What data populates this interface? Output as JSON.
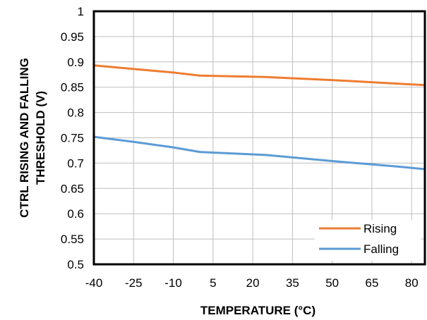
{
  "chart_data": {
    "type": "line",
    "title": "",
    "xlabel": "TEMPERATURE (°C)",
    "ylabel_line1": "CTRL RISING AND FALLING",
    "ylabel_line2": "THRESHOLD (V)",
    "xlim": [
      -40,
      85
    ],
    "ylim": [
      0.5,
      1.0
    ],
    "x_ticks": [
      -40,
      -25,
      -10,
      5,
      20,
      35,
      50,
      65,
      80
    ],
    "y_ticks": [
      0.5,
      0.55,
      0.6,
      0.65,
      0.7,
      0.75,
      0.8,
      0.85,
      0.9,
      0.95,
      1.0
    ],
    "y_tick_labels": [
      "0.5",
      "0.55",
      "0.6",
      "0.65",
      "0.7",
      "0.75",
      "0.8",
      "0.85",
      "0.9",
      "0.95",
      "1"
    ],
    "grid": true,
    "legend_position": "bottom-right",
    "series": [
      {
        "name": "Rising",
        "color": "#ED7D31",
        "points": [
          [
            -40,
            0.893
          ],
          [
            -25,
            0.886
          ],
          [
            -10,
            0.879
          ],
          [
            0,
            0.873
          ],
          [
            25,
            0.87
          ],
          [
            50,
            0.864
          ],
          [
            75,
            0.857
          ],
          [
            85,
            0.854
          ]
        ]
      },
      {
        "name": "Falling",
        "color": "#5B9BD5",
        "points": [
          [
            -40,
            0.752
          ],
          [
            -25,
            0.742
          ],
          [
            -10,
            0.731
          ],
          [
            0,
            0.722
          ],
          [
            25,
            0.716
          ],
          [
            50,
            0.704
          ],
          [
            75,
            0.693
          ],
          [
            85,
            0.688
          ]
        ]
      }
    ]
  }
}
